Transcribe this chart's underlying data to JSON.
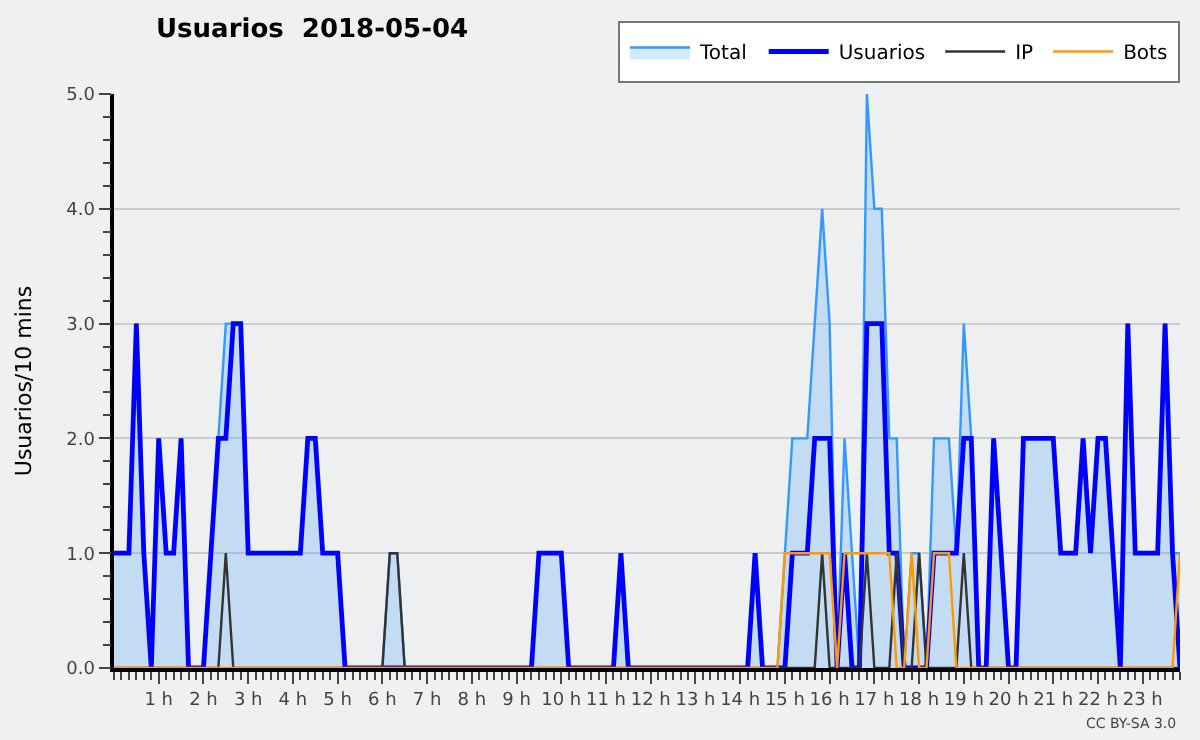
{
  "chart_data": {
    "type": "line",
    "title": "Usuarios  2018-05-04",
    "ylabel": "Usuarios/10 mins",
    "annotations": [
      "CC BY-SA 3.0"
    ],
    "x": [
      0,
      0.1667,
      0.3333,
      0.5,
      0.6667,
      0.8333,
      1,
      1.1667,
      1.3333,
      1.5,
      1.6667,
      1.8333,
      2,
      2.1667,
      2.3333,
      2.5,
      2.6667,
      2.8333,
      3,
      3.1667,
      3.3333,
      3.5,
      3.6667,
      3.8333,
      4,
      4.1667,
      4.3333,
      4.5,
      4.6667,
      4.8333,
      5,
      5.1667,
      5.3333,
      5.5,
      5.6667,
      5.8333,
      6,
      6.1667,
      6.3333,
      6.5,
      6.6667,
      6.8333,
      7,
      7.1667,
      7.3333,
      7.5,
      7.6667,
      7.8333,
      8,
      8.1667,
      8.3333,
      8.5,
      8.6667,
      8.8333,
      9,
      9.1667,
      9.3333,
      9.5,
      9.6667,
      9.8333,
      10,
      10.1667,
      10.3333,
      10.5,
      10.6667,
      10.8333,
      11,
      11.1667,
      11.3333,
      11.5,
      11.6667,
      11.8333,
      12,
      12.1667,
      12.3333,
      12.5,
      12.6667,
      12.8333,
      13,
      13.1667,
      13.3333,
      13.5,
      13.6667,
      13.8333,
      14,
      14.1667,
      14.3333,
      14.5,
      14.6667,
      14.8333,
      15,
      15.1667,
      15.3333,
      15.5,
      15.6667,
      15.8333,
      16,
      16.1667,
      16.3333,
      16.5,
      16.6667,
      16.8333,
      17,
      17.1667,
      17.3333,
      17.5,
      17.6667,
      17.8333,
      18,
      18.1667,
      18.3333,
      18.5,
      18.6667,
      18.8333,
      19,
      19.1667,
      19.3333,
      19.5,
      19.6667,
      19.8333,
      20,
      20.1667,
      20.3333,
      20.5,
      20.6667,
      20.8333,
      21,
      21.1667,
      21.3333,
      21.5,
      21.6667,
      21.8333,
      22,
      22.1667,
      22.3333,
      22.5,
      22.6667,
      22.8333,
      23,
      23.1667,
      23.3333,
      23.5,
      23.6667,
      23.8333
    ],
    "series": [
      {
        "name": "Total",
        "type": "area",
        "color": "#3399ff",
        "values": [
          1,
          1,
          1,
          3,
          1,
          0,
          2,
          1,
          1,
          2,
          0,
          0,
          0,
          1,
          2,
          3,
          3,
          3,
          1,
          1,
          1,
          1,
          1,
          1,
          1,
          1,
          2,
          2,
          1,
          1,
          1,
          0,
          0,
          0,
          0,
          0,
          0,
          1,
          1,
          0,
          0,
          0,
          0,
          0,
          0,
          0,
          0,
          0,
          0,
          0,
          0,
          0,
          0,
          0,
          0,
          0,
          0,
          1,
          1,
          1,
          1,
          0,
          0,
          0,
          0,
          0,
          0,
          0,
          1,
          0,
          0,
          0,
          0,
          0,
          0,
          0,
          0,
          0,
          0,
          0,
          0,
          0,
          0,
          0,
          0,
          0,
          1,
          0,
          0,
          0,
          1,
          2,
          2,
          2,
          3,
          4,
          3,
          0,
          2,
          1,
          0,
          5,
          4,
          4,
          2,
          2,
          0,
          1,
          1,
          0,
          2,
          2,
          2,
          1,
          3,
          2,
          0,
          0,
          2,
          1,
          0,
          0,
          2,
          2,
          2,
          2,
          2,
          1,
          1,
          1,
          2,
          1,
          2,
          2,
          1,
          0,
          3,
          1,
          1,
          1,
          1,
          3,
          1,
          1
        ]
      },
      {
        "name": "Usuarios",
        "color": "#0000ff",
        "values": [
          1,
          1,
          1,
          3,
          1,
          0,
          2,
          1,
          1,
          2,
          0,
          0,
          0,
          1,
          2,
          2,
          3,
          3,
          1,
          1,
          1,
          1,
          1,
          1,
          1,
          1,
          2,
          2,
          1,
          1,
          1,
          0,
          0,
          0,
          0,
          0,
          0,
          0,
          0,
          0,
          0,
          0,
          0,
          0,
          0,
          0,
          0,
          0,
          0,
          0,
          0,
          0,
          0,
          0,
          0,
          0,
          0,
          1,
          1,
          1,
          1,
          0,
          0,
          0,
          0,
          0,
          0,
          0,
          1,
          0,
          0,
          0,
          0,
          0,
          0,
          0,
          0,
          0,
          0,
          0,
          0,
          0,
          0,
          0,
          0,
          0,
          1,
          0,
          0,
          0,
          0,
          1,
          1,
          1,
          2,
          2,
          2,
          0,
          1,
          0,
          0,
          3,
          3,
          3,
          1,
          1,
          0,
          0,
          0,
          0,
          1,
          1,
          1,
          1,
          2,
          2,
          0,
          0,
          2,
          1,
          0,
          0,
          2,
          2,
          2,
          2,
          2,
          1,
          1,
          1,
          2,
          1,
          2,
          2,
          1,
          0,
          3,
          1,
          1,
          1,
          1,
          3,
          1,
          0
        ]
      },
      {
        "name": "IP",
        "color": "#333333",
        "values": [
          0,
          0,
          0,
          0,
          0,
          0,
          0,
          0,
          0,
          0,
          0,
          0,
          0,
          0,
          0,
          1,
          0,
          0,
          0,
          0,
          0,
          0,
          0,
          0,
          0,
          0,
          0,
          0,
          0,
          0,
          0,
          0,
          0,
          0,
          0,
          0,
          0,
          1,
          1,
          0,
          0,
          0,
          0,
          0,
          0,
          0,
          0,
          0,
          0,
          0,
          0,
          0,
          0,
          0,
          0,
          0,
          0,
          0,
          0,
          0,
          0,
          0,
          0,
          0,
          0,
          0,
          0,
          0,
          0,
          0,
          0,
          0,
          0,
          0,
          0,
          0,
          0,
          0,
          0,
          0,
          0,
          0,
          0,
          0,
          0,
          0,
          0,
          0,
          0,
          0,
          0,
          0,
          0,
          0,
          0,
          1,
          0,
          0,
          0,
          0,
          0,
          1,
          0,
          0,
          0,
          1,
          0,
          0,
          1,
          0,
          0,
          0,
          0,
          0,
          1,
          0,
          0,
          0,
          0,
          0,
          0,
          0,
          0,
          0,
          0,
          0,
          0,
          0,
          0,
          0,
          0,
          0,
          0,
          0,
          0,
          0,
          0,
          0,
          0,
          0,
          0,
          0,
          0,
          0
        ]
      },
      {
        "name": "Bots",
        "color": "#ff9900",
        "values": [
          0,
          0,
          0,
          0,
          0,
          0,
          0,
          0,
          0,
          0,
          0,
          0,
          0,
          0,
          0,
          0,
          0,
          0,
          0,
          0,
          0,
          0,
          0,
          0,
          0,
          0,
          0,
          0,
          0,
          0,
          0,
          0,
          0,
          0,
          0,
          0,
          0,
          0,
          0,
          0,
          0,
          0,
          0,
          0,
          0,
          0,
          0,
          0,
          0,
          0,
          0,
          0,
          0,
          0,
          0,
          0,
          0,
          0,
          0,
          0,
          0,
          0,
          0,
          0,
          0,
          0,
          0,
          0,
          0,
          0,
          0,
          0,
          0,
          0,
          0,
          0,
          0,
          0,
          0,
          0,
          0,
          0,
          0,
          0,
          0,
          0,
          0,
          0,
          0,
          0,
          1,
          1,
          1,
          1,
          1,
          1,
          1,
          0,
          1,
          1,
          1,
          1,
          1,
          1,
          1,
          0,
          0,
          1,
          0,
          0,
          1,
          1,
          1,
          0,
          0,
          0,
          0,
          0,
          0,
          0,
          0,
          0,
          0,
          0,
          0,
          0,
          0,
          0,
          0,
          0,
          0,
          0,
          0,
          0,
          0,
          0,
          0,
          0,
          0,
          0,
          0,
          0,
          0,
          1
        ]
      }
    ],
    "xlim": [
      0,
      23.8333
    ],
    "xticks": [
      {
        "value": 1,
        "label": "1 h"
      },
      {
        "value": 2,
        "label": "2 h"
      },
      {
        "value": 3,
        "label": "3 h"
      },
      {
        "value": 4,
        "label": "4 h"
      },
      {
        "value": 5,
        "label": "5 h"
      },
      {
        "value": 6,
        "label": "6 h"
      },
      {
        "value": 7,
        "label": "7 h"
      },
      {
        "value": 8,
        "label": "8 h"
      },
      {
        "value": 9,
        "label": "9 h"
      },
      {
        "value": 10,
        "label": "10 h"
      },
      {
        "value": 11,
        "label": "11 h"
      },
      {
        "value": 12,
        "label": "12 h"
      },
      {
        "value": 13,
        "label": "13 h"
      },
      {
        "value": 14,
        "label": "14 h"
      },
      {
        "value": 15,
        "label": "15 h"
      },
      {
        "value": 16,
        "label": "16 h"
      },
      {
        "value": 17,
        "label": "17 h"
      },
      {
        "value": 18,
        "label": "18 h"
      },
      {
        "value": 19,
        "label": "19 h"
      },
      {
        "value": 20,
        "label": "20 h"
      },
      {
        "value": 21,
        "label": "21 h"
      },
      {
        "value": 22,
        "label": "22 h"
      },
      {
        "value": 23,
        "label": "23 h"
      }
    ],
    "ylim": [
      0,
      5
    ],
    "yticks": [
      {
        "value": 0,
        "label": "0.0"
      },
      {
        "value": 1,
        "label": "1.0"
      },
      {
        "value": 2,
        "label": "2.0"
      },
      {
        "value": 3,
        "label": "3.0"
      },
      {
        "value": 4,
        "label": "4.0"
      },
      {
        "value": 5,
        "label": "5.0"
      }
    ],
    "grid": "y",
    "legend": "top right",
    "marker": "none",
    "line_style": "solid"
  }
}
